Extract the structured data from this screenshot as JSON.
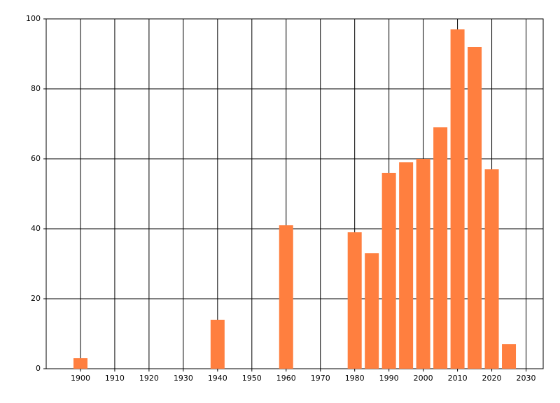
{
  "chart_data": {
    "type": "bar",
    "x": [
      1900,
      1940,
      1960,
      1980,
      1985,
      1990,
      1995,
      2000,
      2005,
      2010,
      2015,
      2020,
      2025
    ],
    "values": [
      3,
      14,
      41,
      39,
      33,
      56,
      59,
      60,
      69,
      97,
      92,
      57,
      7
    ],
    "color": "#ff7f3f",
    "xlim": [
      1890,
      2035
    ],
    "xticks": [
      1900,
      1910,
      1920,
      1930,
      1940,
      1950,
      1960,
      1970,
      1980,
      1990,
      2000,
      2010,
      2020,
      2030
    ],
    "ylim": [
      0,
      100
    ],
    "yticks": [
      0,
      20,
      40,
      60,
      80,
      100
    ],
    "grid": true
  }
}
